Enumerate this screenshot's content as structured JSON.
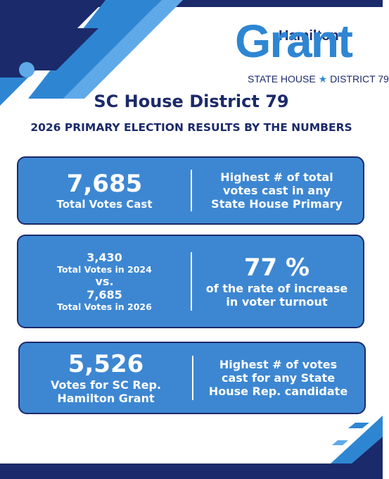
{
  "logo": {
    "first": "Hamilton",
    "last": "Grant",
    "left": "STATE HOUSE",
    "right": "DISTRICT 79"
  },
  "header": {
    "title": "SC House District 79",
    "subtitle": "2026 PRIMARY ELECTION RESULTS BY THE NUMBERS"
  },
  "cards": [
    {
      "left": [
        {
          "text": "7,685",
          "size": "big"
        },
        {
          "text": "Total Votes Cast",
          "size": "small"
        }
      ],
      "right": [
        {
          "text": "Highest # of total",
          "size": "mid"
        },
        {
          "text": "votes cast in any",
          "size": "mid"
        },
        {
          "text": "State House Primary",
          "size": "mid"
        }
      ]
    },
    {
      "left": [
        {
          "text": "3,430",
          "size": "mid"
        },
        {
          "text": "Total Votes in 2024",
          "size": "tiny"
        },
        {
          "text": "vs.",
          "size": "mid"
        },
        {
          "text": "7,685",
          "size": "mid"
        },
        {
          "text": "Total Votes in 2026",
          "size": "tiny"
        }
      ],
      "right": [
        {
          "text": "77 %",
          "size": "big"
        },
        {
          "text": "of the rate of increase",
          "size": "mid"
        },
        {
          "text": "in voter turnout",
          "size": "mid"
        }
      ]
    },
    {
      "left": [
        {
          "text": "5,526",
          "size": "big"
        },
        {
          "text": "Votes for SC Rep.",
          "size": "mid"
        },
        {
          "text": "Hamilton Grant",
          "size": "mid"
        }
      ],
      "right": [
        {
          "text": "Highest # of votes",
          "size": "mid"
        },
        {
          "text": "cast for any State",
          "size": "mid"
        },
        {
          "text": "House Rep. candidate",
          "size": "mid"
        }
      ]
    }
  ]
}
